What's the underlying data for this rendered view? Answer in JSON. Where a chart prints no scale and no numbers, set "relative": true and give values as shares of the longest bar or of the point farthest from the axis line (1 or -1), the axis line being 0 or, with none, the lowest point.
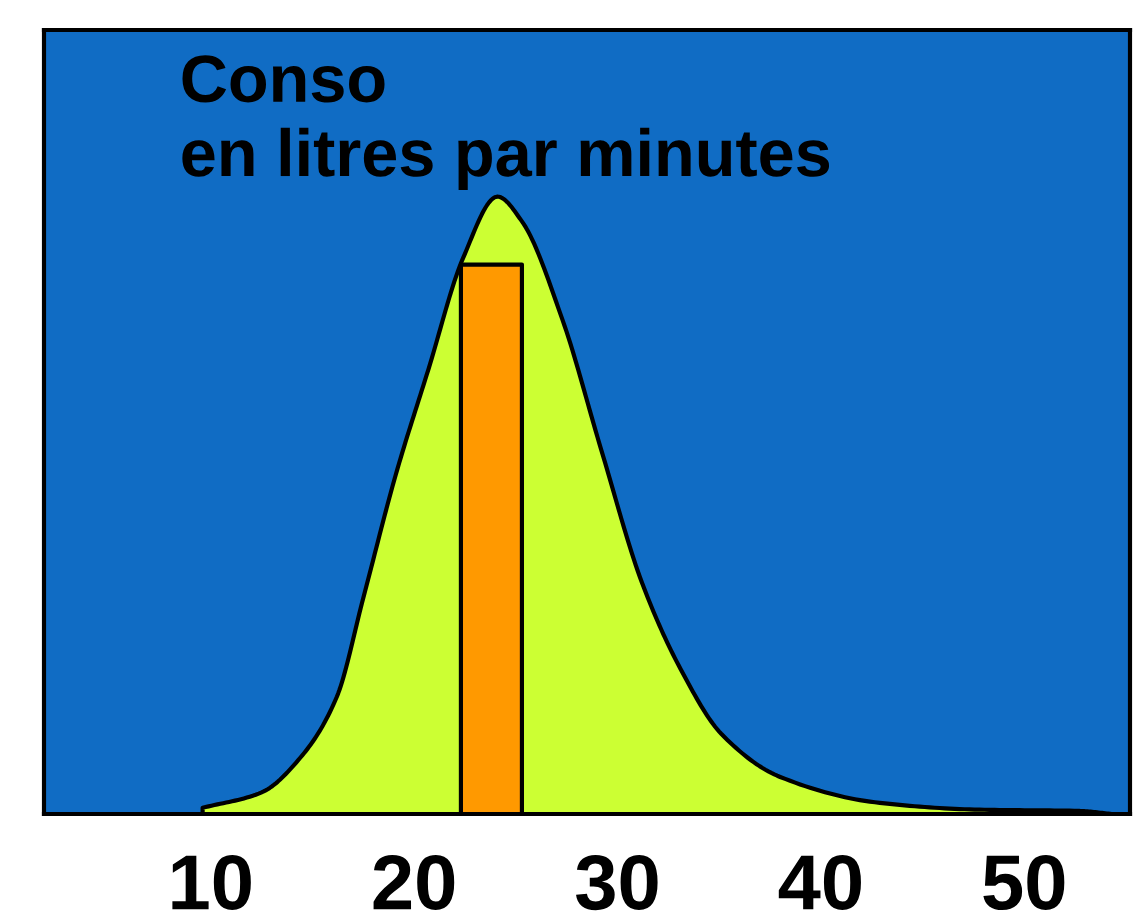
{
  "chart_data": {
    "type": "area",
    "title": "Conso\nen litres par minutes",
    "relative": true,
    "xlim": [
      1.8,
      55.2
    ],
    "xticks": [
      10,
      20,
      30,
      40,
      50
    ],
    "tick_labels": "x",
    "grid": false,
    "series": [
      {
        "color": "#ccff33",
        "x": [
          9.6,
          12.5,
          14.5,
          16.2,
          17.5,
          19.1,
          20.7,
          22.4,
          24.1,
          25.3,
          27.3,
          29.2,
          31.2,
          33.1,
          35.1,
          38.0,
          42.9,
          47.8,
          52.7,
          54.3
        ],
        "values": [
          0.01,
          0.035,
          0.095,
          0.19,
          0.35,
          0.55,
          0.72,
          0.9,
          1.0,
          0.96,
          0.8,
          0.59,
          0.375,
          0.235,
          0.13,
          0.06,
          0.018,
          0.007,
          0.005,
          0
        ]
      },
      {
        "color": "#ff9900",
        "x": [
          22.3,
          22.3,
          25.3,
          25.3
        ],
        "values": [
          0,
          0.89,
          0.89,
          0
        ]
      }
    ]
  }
}
